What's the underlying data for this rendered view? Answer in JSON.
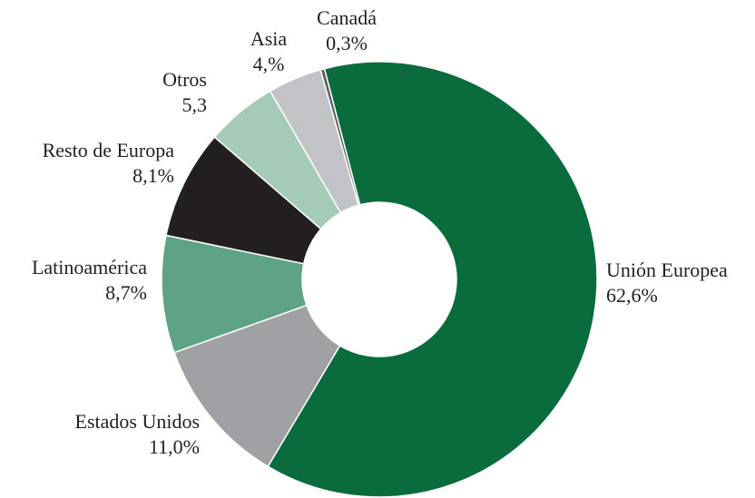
{
  "chart_data": {
    "type": "donut",
    "categories": [
      "Unión Europea",
      "Estados Unidos",
      "Latinoamérica",
      "Resto de Europa",
      "Otros",
      "Asia",
      "Canadá"
    ],
    "values": [
      62.6,
      11.0,
      8.7,
      8.1,
      5.3,
      4,
      0.3
    ],
    "value_labels": [
      "62,6%",
      "11,0%",
      "8,7%",
      "8,1%",
      "5,3",
      "4,%",
      "0,3%"
    ],
    "colors": [
      "#0a6b3d",
      "#a0a1a4",
      "#5fa387",
      "#231f20",
      "#a3cbb8",
      "#c2c3c6",
      "#5e5f62"
    ]
  }
}
